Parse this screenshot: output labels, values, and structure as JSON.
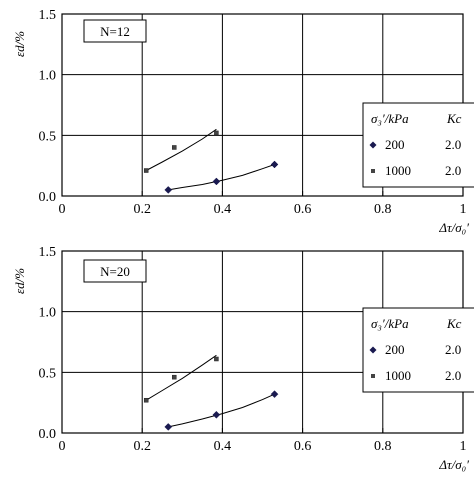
{
  "chart_data": [
    {
      "type": "scatter",
      "panel_label": "N=12",
      "xlabel": "Δτ/σ₀′",
      "ylabel": "εd/%",
      "xlim": [
        0,
        1
      ],
      "ylim": [
        0,
        1.5
      ],
      "x_ticks": [
        "0",
        "0.2",
        "0.4",
        "0.6",
        "0.8",
        "1"
      ],
      "y_ticks": [
        "0.0",
        "0.5",
        "1.0",
        "1.5"
      ],
      "grid": true,
      "legend": {
        "placement": "right",
        "header": [
          "σ₃′/kPa",
          "Kc"
        ],
        "entries": [
          {
            "sigma3": "200",
            "kc": "2.0"
          },
          {
            "sigma3": "1000",
            "kc": "2.0"
          }
        ]
      },
      "series": [
        {
          "marker": "diamond",
          "x": [
            0.265,
            0.385,
            0.53
          ],
          "y": [
            0.05,
            0.12,
            0.26
          ],
          "fit": {
            "x": [
              0.265,
              0.3,
              0.35,
              0.4,
              0.45,
              0.5,
              0.53
            ],
            "y": [
              0.05,
              0.07,
              0.095,
              0.13,
              0.17,
              0.225,
              0.26
            ]
          }
        },
        {
          "marker": "square",
          "x": [
            0.21,
            0.28,
            0.385
          ],
          "y": [
            0.21,
            0.4,
            0.52
          ],
          "fit": {
            "x": [
              0.21,
              0.25,
              0.3,
              0.35,
              0.385
            ],
            "y": [
              0.21,
              0.28,
              0.37,
              0.47,
              0.55
            ]
          }
        }
      ]
    },
    {
      "type": "scatter",
      "panel_label": "N=20",
      "xlabel": "Δτ/σ₀′",
      "ylabel": "εd/%",
      "xlim": [
        0,
        1
      ],
      "ylim": [
        0,
        1.5
      ],
      "x_ticks": [
        "0",
        "0.2",
        "0.4",
        "0.6",
        "0.8",
        "1"
      ],
      "y_ticks": [
        "0.0",
        "0.5",
        "1.0",
        "1.5"
      ],
      "grid": true,
      "legend": {
        "placement": "right",
        "header": [
          "σ₃′/kPa",
          "Kc"
        ],
        "entries": [
          {
            "sigma3": "200",
            "kc": "2.0"
          },
          {
            "sigma3": "1000",
            "kc": "2.0"
          }
        ]
      },
      "series": [
        {
          "marker": "diamond",
          "x": [
            0.265,
            0.385,
            0.53
          ],
          "y": [
            0.05,
            0.15,
            0.32
          ],
          "fit": {
            "x": [
              0.265,
              0.3,
              0.35,
              0.4,
              0.45,
              0.5,
              0.53
            ],
            "y": [
              0.05,
              0.075,
              0.115,
              0.16,
              0.21,
              0.275,
              0.32
            ]
          }
        },
        {
          "marker": "square",
          "x": [
            0.21,
            0.28,
            0.385
          ],
          "y": [
            0.27,
            0.46,
            0.61
          ],
          "fit": {
            "x": [
              0.21,
              0.25,
              0.3,
              0.35,
              0.385
            ],
            "y": [
              0.27,
              0.35,
              0.45,
              0.56,
              0.64
            ]
          }
        }
      ]
    }
  ]
}
